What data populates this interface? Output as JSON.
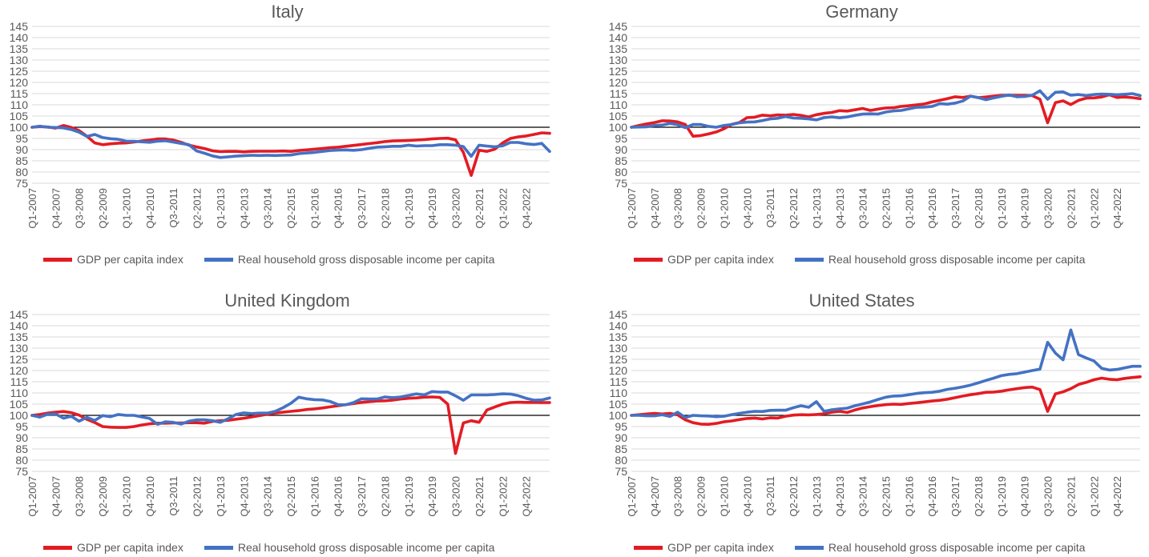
{
  "legend": {
    "gdp_label": "GDP per capita index",
    "income_label": "Real household gross disposable income per capita"
  },
  "colors": {
    "gdp": "#e31b23",
    "income": "#4472c4",
    "baseline": "#000000",
    "grid": "#d9d9d9",
    "text": "#595959"
  },
  "chart_data": [
    {
      "type": "line",
      "title": "Italy",
      "ylim": [
        75,
        145
      ],
      "yticks": [
        75,
        80,
        85,
        90,
        95,
        100,
        105,
        110,
        115,
        120,
        125,
        130,
        135,
        140,
        145
      ],
      "baseline": 100,
      "grid": true,
      "legend_position": "bottom",
      "x_start": "Q1-2007",
      "x_tick_labels": [
        "Q1-2007",
        "Q4-2007",
        "Q3-2008",
        "Q2-2009",
        "Q1-2010",
        "Q4-2010",
        "Q3-2011",
        "Q2-2012",
        "Q1-2013",
        "Q4-2013",
        "Q3-2014",
        "Q2-2015",
        "Q1-2016",
        "Q4-2016",
        "Q3-2017",
        "Q2-2018",
        "Q1-2019",
        "Q4-2019",
        "Q3-2020",
        "Q2-2021",
        "Q1-2022",
        "Q4-2022"
      ],
      "series": [
        {
          "name": "GDP per capita index",
          "color": "#e31b23",
          "values": [
            100,
            100.3,
            100.1,
            99.6,
            100.8,
            99.9,
            98.5,
            96,
            93,
            92.2,
            92.6,
            92.9,
            93,
            93.4,
            93.9,
            94.3,
            94.8,
            94.8,
            94.3,
            93.3,
            92,
            91.2,
            90.5,
            89.5,
            89.1,
            89.2,
            89.2,
            89,
            89.2,
            89.3,
            89.3,
            89.3,
            89.4,
            89.2,
            89.6,
            89.9,
            90.2,
            90.5,
            90.9,
            91.1,
            91.5,
            91.9,
            92.3,
            92.7,
            93.1,
            93.6,
            93.9,
            94,
            94.1,
            94.3,
            94.5,
            94.8,
            95,
            95.1,
            94.4,
            88.8,
            78.5,
            89.8,
            89.2,
            90.2,
            93,
            95,
            95.7,
            96.1,
            96.8,
            97.5,
            97.3
          ]
        },
        {
          "name": "Real household gross disposable income per capita",
          "color": "#4472c4",
          "values": [
            100,
            100.5,
            100,
            99.9,
            99.7,
            99,
            97.8,
            95.9,
            96.8,
            95.4,
            94.9,
            94.6,
            93.8,
            93.7,
            93.5,
            93.3,
            93.8,
            94,
            93.4,
            92.8,
            92.2,
            89.4,
            88.4,
            87.2,
            86.5,
            86.8,
            87.1,
            87.3,
            87.5,
            87.4,
            87.5,
            87.4,
            87.5,
            87.6,
            88.2,
            88.5,
            88.8,
            89.2,
            89.6,
            89.8,
            89.9,
            89.7,
            90,
            90.6,
            91.1,
            91.3,
            91.5,
            91.5,
            92,
            91.6,
            91.8,
            91.8,
            92.2,
            92.2,
            92,
            91.4,
            87,
            92,
            91.6,
            91.3,
            91.7,
            93.2,
            93.2,
            92.6,
            92.3,
            92.8,
            89.2
          ]
        }
      ]
    },
    {
      "type": "line",
      "title": "Germany",
      "ylim": [
        75,
        145
      ],
      "yticks": [
        75,
        80,
        85,
        90,
        95,
        100,
        105,
        110,
        115,
        120,
        125,
        130,
        135,
        140,
        145
      ],
      "baseline": 100,
      "grid": true,
      "legend_position": "bottom",
      "x_start": "Q1-2007",
      "x_tick_labels": [
        "Q1-2007",
        "Q4-2007",
        "Q3-2008",
        "Q2-2009",
        "Q1-2010",
        "Q4-2010",
        "Q3-2011",
        "Q2-2012",
        "Q1-2013",
        "Q4-2013",
        "Q3-2014",
        "Q2-2015",
        "Q1-2016",
        "Q4-2016",
        "Q3-2017",
        "Q2-2018",
        "Q1-2019",
        "Q4-2019",
        "Q3-2020",
        "Q2-2021",
        "Q1-2022",
        "Q4-2022"
      ],
      "series": [
        {
          "name": "GDP per capita index",
          "color": "#e31b23",
          "values": [
            100,
            100.8,
            101.5,
            102.1,
            102.9,
            102.8,
            102.4,
            101.2,
            96,
            96.3,
            97,
            97.9,
            99.3,
            101.3,
            102.1,
            104.3,
            104.5,
            105.4,
            105.1,
            105.5,
            105.4,
            105.7,
            105.3,
            104.6,
            105.6,
            106.2,
            106.6,
            107.4,
            107.2,
            107.8,
            108.4,
            107.5,
            108.1,
            108.6,
            108.7,
            109.3,
            109.6,
            110,
            110.4,
            111.3,
            112,
            112.8,
            113.6,
            113.3,
            113.9,
            113.2,
            113.5,
            113.9,
            114.2,
            114.3,
            114.2,
            114.2,
            114.1,
            112.5,
            102,
            111,
            111.8,
            110.1,
            112,
            113,
            113.1,
            113.5,
            114.5,
            113.3,
            113.5,
            113.2,
            112.7
          ]
        },
        {
          "name": "Real household gross disposable income per capita",
          "color": "#4472c4",
          "values": [
            100,
            100.1,
            100.2,
            100.8,
            101,
            101.7,
            101.1,
            99.8,
            101.2,
            101.2,
            100.4,
            100,
            100.8,
            101.2,
            102,
            102.3,
            102.4,
            103,
            103.7,
            104,
            104.8,
            104.1,
            104,
            103.7,
            103.3,
            104.3,
            104.6,
            104.2,
            104.6,
            105.3,
            105.9,
            106,
            105.9,
            106.8,
            107.3,
            107.5,
            108.2,
            108.9,
            109,
            109.3,
            110.5,
            110.3,
            110.8,
            111.7,
            113.9,
            113.2,
            112.3,
            113.1,
            113.8,
            114.4,
            113.6,
            113.7,
            114.3,
            116.3,
            112.5,
            115.6,
            115.8,
            114.3,
            114.6,
            114.1,
            114.6,
            114.8,
            114.7,
            114.5,
            114.7,
            115,
            114.1
          ]
        }
      ]
    },
    {
      "type": "line",
      "title": "United Kingdom",
      "ylim": [
        75,
        145
      ],
      "yticks": [
        75,
        80,
        85,
        90,
        95,
        100,
        105,
        110,
        115,
        120,
        125,
        130,
        135,
        140,
        145
      ],
      "baseline": 100,
      "grid": true,
      "legend_position": "bottom",
      "x_start": "Q1-2007",
      "x_tick_labels": [
        "Q1-2007",
        "Q4-2007",
        "Q3-2008",
        "Q2-2009",
        "Q1-2010",
        "Q4-2010",
        "Q3-2011",
        "Q2-2012",
        "Q1-2013",
        "Q4-2013",
        "Q3-2014",
        "Q2-2015",
        "Q1-2016",
        "Q4-2016",
        "Q3-2017",
        "Q2-2018",
        "Q1-2019",
        "Q4-2019",
        "Q3-2020",
        "Q2-2021",
        "Q1-2022",
        "Q4-2022"
      ],
      "series": [
        {
          "name": "GDP per capita index",
          "color": "#e31b23",
          "values": [
            100,
            100.4,
            101,
            101.4,
            101.7,
            101.2,
            100.1,
            98.2,
            96.8,
            95,
            94.7,
            94.6,
            94.6,
            95,
            95.7,
            96.2,
            96.5,
            96.5,
            96.6,
            96.6,
            96.7,
            96.7,
            96.5,
            97.3,
            97.6,
            97.8,
            98.3,
            98.7,
            99.3,
            99.9,
            100.5,
            101,
            101.4,
            101.8,
            102.1,
            102.6,
            102.9,
            103.3,
            103.8,
            104.3,
            104.8,
            105.3,
            105.8,
            106.1,
            106.4,
            106.5,
            106.8,
            107.3,
            107.6,
            107.8,
            108.1,
            108.2,
            108,
            105,
            83,
            96.6,
            97.6,
            96.9,
            102.4,
            103.7,
            105,
            105.7,
            105.9,
            105.8,
            105.8,
            105.7,
            105.7
          ]
        },
        {
          "name": "Real household gross disposable income per capita",
          "color": "#4472c4",
          "values": [
            100,
            99.2,
            100.5,
            100.6,
            98.7,
            99.6,
            97.4,
            99.1,
            97.7,
            99.9,
            99.4,
            100.4,
            100,
            100,
            99.3,
            98.6,
            96,
            97.1,
            96.9,
            96.1,
            97.4,
            98,
            98,
            97.6,
            96.9,
            98.5,
            100.4,
            101.1,
            100.8,
            101,
            101,
            101.8,
            103.4,
            105.4,
            108.1,
            107.4,
            107,
            106.9,
            106.2,
            104.8,
            104.7,
            105.7,
            107.4,
            107.3,
            107.3,
            108.2,
            107.9,
            108.2,
            108.9,
            109.6,
            109.1,
            110.6,
            110.4,
            110.4,
            108.7,
            106.7,
            109.1,
            109.1,
            109.1,
            109.3,
            109.6,
            109.5,
            108.8,
            107.6,
            106.8,
            106.9,
            107.8
          ]
        }
      ]
    },
    {
      "type": "line",
      "title": "United States",
      "ylim": [
        75,
        145
      ],
      "yticks": [
        75,
        80,
        85,
        90,
        95,
        100,
        105,
        110,
        115,
        120,
        125,
        130,
        135,
        140,
        145
      ],
      "baseline": 100,
      "grid": true,
      "legend_position": "bottom",
      "x_start": "Q1-2007",
      "x_tick_labels": [
        "Q1-2007",
        "Q4-2007",
        "Q3-2008",
        "Q2-2009",
        "Q1-2010",
        "Q4-2010",
        "Q3-2011",
        "Q2-2012",
        "Q1-2013",
        "Q4-2013",
        "Q3-2014",
        "Q2-2015",
        "Q1-2016",
        "Q4-2016",
        "Q3-2017",
        "Q2-2018",
        "Q1-2019",
        "Q4-2019",
        "Q3-2020",
        "Q2-2021",
        "Q1-2022",
        "Q4-2022"
      ],
      "series": [
        {
          "name": "GDP per capita index",
          "color": "#e31b23",
          "values": [
            100,
            100.3,
            100.6,
            100.9,
            100.6,
            100.9,
            100.2,
            98,
            96.7,
            96.1,
            96,
            96.4,
            97.1,
            97.5,
            98.1,
            98.6,
            98.8,
            98.4,
            98.9,
            98.8,
            99.6,
            100.1,
            100.3,
            100.2,
            100.4,
            100.7,
            101.4,
            101.8,
            101.3,
            102.4,
            103.3,
            103.9,
            104.4,
            104.8,
            105,
            104.9,
            105.3,
            105.6,
            106,
            106.4,
            106.7,
            107.2,
            107.9,
            108.6,
            109.2,
            109.7,
            110.3,
            110.4,
            110.8,
            111.4,
            111.9,
            112.4,
            112.6,
            111.5,
            101.8,
            109.6,
            110.5,
            111.9,
            113.8,
            114.7,
            115.9,
            116.6,
            116.1,
            115.9,
            116.5,
            116.9,
            117.2
          ]
        },
        {
          "name": "Real household gross disposable income per capita",
          "color": "#4472c4",
          "values": [
            100,
            100,
            99.8,
            99.8,
            100.3,
            99.5,
            101.4,
            99,
            100,
            99.8,
            99.7,
            99.4,
            99.6,
            100.3,
            100.9,
            101.4,
            101.8,
            101.7,
            102.2,
            102.3,
            102.3,
            103.4,
            104.3,
            103.6,
            106.1,
            101.8,
            102.5,
            102.9,
            103.2,
            104.3,
            105.1,
            106,
            107.1,
            108.1,
            108.6,
            108.7,
            109.2,
            109.8,
            110.1,
            110.3,
            110.8,
            111.6,
            112.1,
            112.7,
            113.5,
            114.5,
            115.6,
            116.6,
            117.7,
            118.3,
            118.6,
            119.3,
            120,
            120.6,
            132.6,
            127.8,
            124.8,
            138.1,
            127.1,
            125.6,
            124.3,
            121,
            120.2,
            120.5,
            121.2,
            121.9,
            121.9
          ]
        }
      ]
    }
  ]
}
